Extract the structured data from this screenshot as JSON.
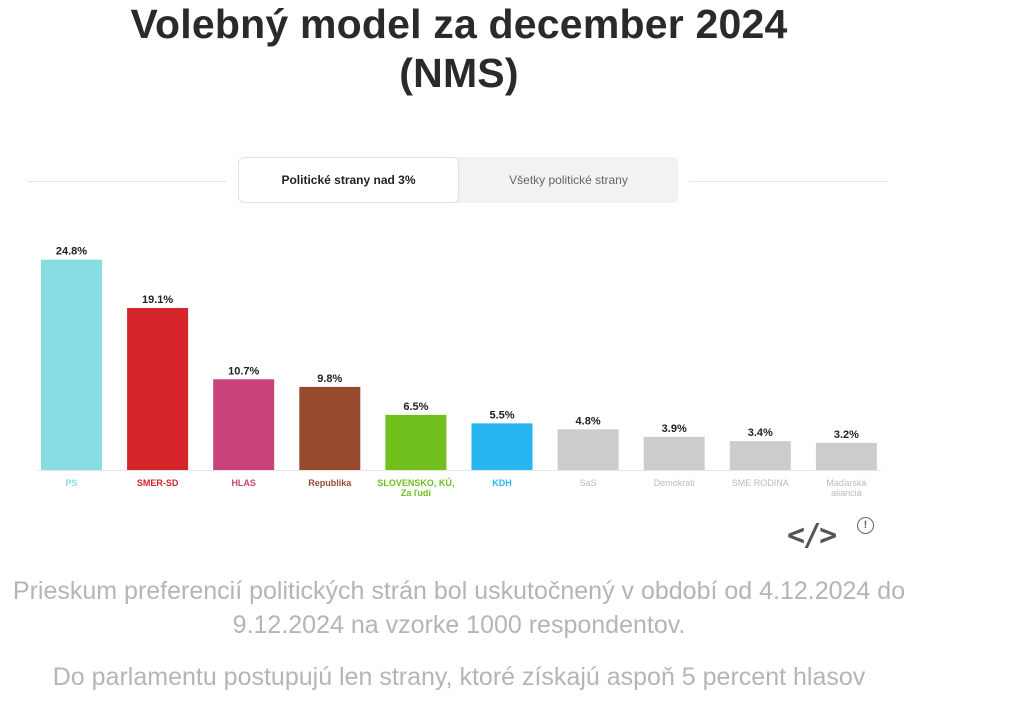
{
  "title": {
    "line1": "Volebný model za december 2024",
    "line2": "(NMS)"
  },
  "tabs": [
    {
      "label": "Politické strany nad 3%",
      "active": true
    },
    {
      "label": "Všetky politické strany",
      "active": false
    }
  ],
  "chart_data": {
    "type": "bar",
    "categories": [
      "PS",
      "SMER-SD",
      "HLAS",
      "Republika",
      "SLOVENSKO, KÚ, Za ľudí",
      "KDH",
      "SaS",
      "Demokrati",
      "SME RODINA",
      "Maďarská aliancia"
    ],
    "values": [
      24.8,
      19.1,
      10.7,
      9.8,
      6.5,
      5.5,
      4.8,
      3.9,
      3.4,
      3.2
    ],
    "value_labels": [
      "24.8%",
      "19.1%",
      "10.7%",
      "9.8%",
      "6.5%",
      "5.5%",
      "4.8%",
      "3.9%",
      "3.4%",
      "3.2%"
    ],
    "category_lines": [
      [
        "PS"
      ],
      [
        "SMER-SD"
      ],
      [
        "HLAS"
      ],
      [
        "Republika"
      ],
      [
        "SLOVENSKO, KÚ,",
        "Za ľudí"
      ],
      [
        "KDH"
      ],
      [
        "SaS"
      ],
      [
        "Demokrati"
      ],
      [
        "SME RODINA"
      ],
      [
        "Maďarská",
        "aliancia"
      ]
    ],
    "colors": [
      "#87dde1",
      "#d42429",
      "#c9437a",
      "#974a2e",
      "#70bf1c",
      "#27b6f0",
      "#cccccc",
      "#cccccc",
      "#cccccc",
      "#cccccc"
    ],
    "label_colors": [
      "#87dde1",
      "#d42429",
      "#c9437a",
      "#974a2e",
      "#70bf1c",
      "#27b6f0",
      "#bbbbbb",
      "#bbbbbb",
      "#bbbbbb",
      "#bbbbbb"
    ],
    "ylim": [
      0,
      25
    ],
    "grid": false,
    "title": "",
    "xlabel": "",
    "ylabel": ""
  },
  "icons": {
    "embed": "code-embed-icon",
    "embed_glyph": "</>",
    "info": "info-icon",
    "info_glyph": "!"
  },
  "notes": {
    "survey": "Prieskum preferencií politických strán bol uskutočnený v období od 4.12.2024 do 9.12.2024 na vzorke 1000 respondentov.",
    "threshold": "Do parlamentu postupujú len strany, ktoré získajú aspoň 5 percent hlasov"
  }
}
